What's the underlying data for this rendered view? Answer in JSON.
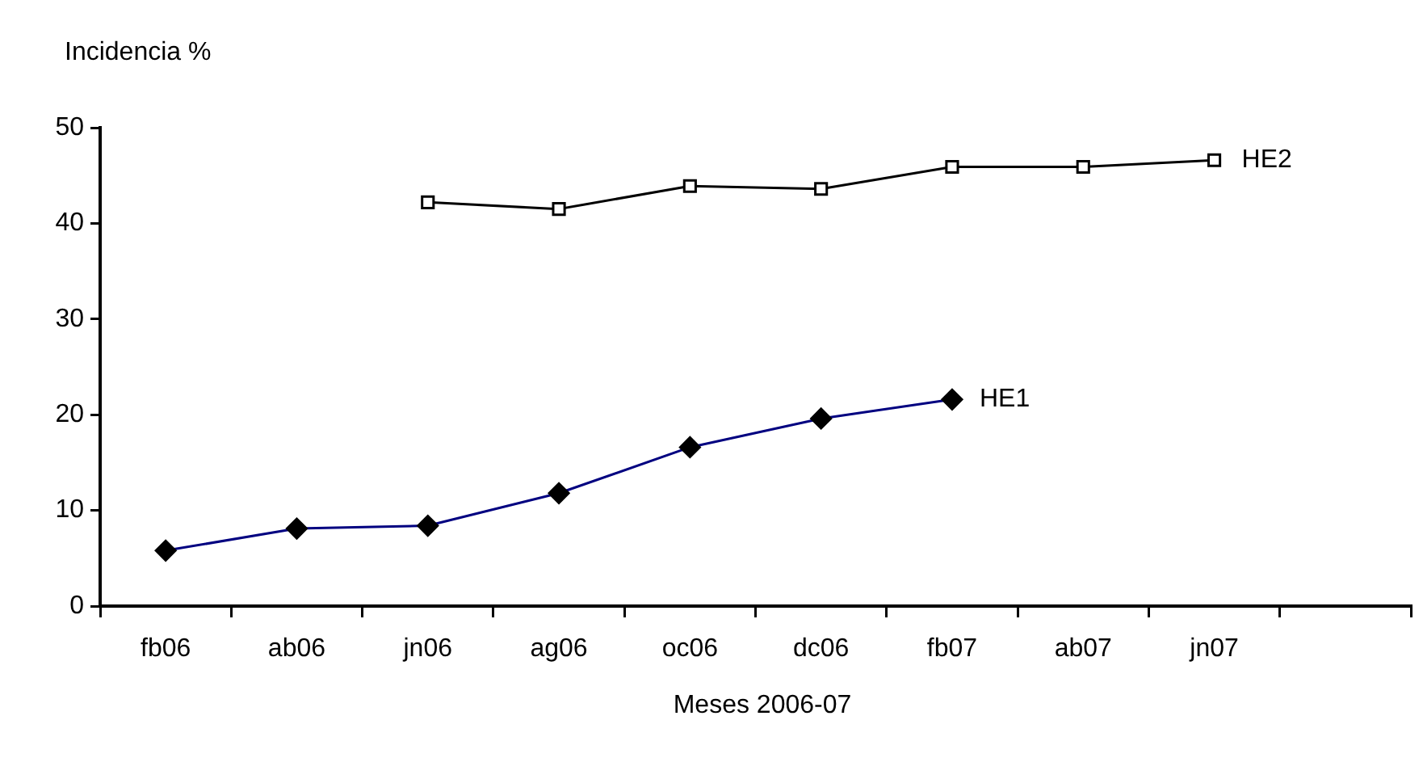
{
  "chart_data": {
    "type": "line",
    "xlabel": "Meses 2006-07",
    "ylabel": "Incidencia %",
    "categories": [
      "fb06",
      "ab06",
      "jn06",
      "ag06",
      "oc06",
      "dc06",
      "fb07",
      "ab07",
      "jn07",
      null
    ],
    "series": [
      {
        "name": "HE1",
        "color": "#000080",
        "marker": "diamond",
        "values": [
          5.8,
          8.1,
          8.4,
          11.8,
          16.6,
          19.6,
          21.6,
          null,
          null,
          null
        ]
      },
      {
        "name": "HE2",
        "color": "#000000",
        "marker": "square",
        "values": [
          null,
          null,
          42.2,
          41.5,
          43.9,
          43.6,
          45.9,
          45.9,
          46.6,
          null
        ]
      }
    ],
    "ylim": [
      0,
      50
    ],
    "yticks": [
      0,
      10,
      20,
      30,
      40,
      50
    ],
    "grid": false,
    "legend": false,
    "line_style": "solid"
  }
}
